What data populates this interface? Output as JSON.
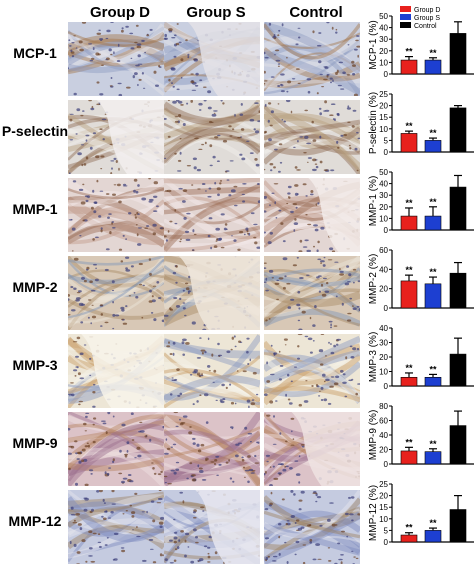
{
  "columns": [
    "Group D",
    "Group S",
    "Control"
  ],
  "rows": [
    "MCP-1",
    "P-selectin",
    "MMP-1",
    "MMP-2",
    "MMP-3",
    "MMP-9",
    "MMP-12"
  ],
  "legend": [
    "Group D",
    "Group S",
    "Control"
  ],
  "significance_marker": "**",
  "colors": {
    "group_d": "#e8211d",
    "group_s": "#1d3fd1",
    "control": "#000000"
  },
  "chart_data": [
    {
      "type": "bar",
      "title": "",
      "ylabel": "MCP-1 (%)",
      "categories": [
        "Group D",
        "Group S",
        "Control"
      ],
      "values": [
        12,
        12,
        35
      ],
      "errors": [
        3,
        2,
        10
      ],
      "ylim": [
        0,
        50
      ],
      "yticks": [
        0,
        10,
        20,
        30,
        40,
        50
      ],
      "significance": [
        "**",
        "**",
        ""
      ]
    },
    {
      "type": "bar",
      "title": "",
      "ylabel": "P-selectin (%)",
      "categories": [
        "Group D",
        "Group S",
        "Control"
      ],
      "values": [
        8,
        5,
        19
      ],
      "errors": [
        1,
        1,
        1
      ],
      "ylim": [
        0,
        25
      ],
      "yticks": [
        0,
        5,
        10,
        15,
        20,
        25
      ],
      "significance": [
        "**",
        "**",
        ""
      ]
    },
    {
      "type": "bar",
      "title": "",
      "ylabel": "MMP-1 (%)",
      "categories": [
        "Group D",
        "Group S",
        "Control"
      ],
      "values": [
        12,
        12,
        37
      ],
      "errors": [
        7,
        8,
        10
      ],
      "ylim": [
        0,
        50
      ],
      "yticks": [
        0,
        10,
        20,
        30,
        40,
        50
      ],
      "significance": [
        "**",
        "**",
        ""
      ]
    },
    {
      "type": "bar",
      "title": "",
      "ylabel": "MMP-2 (%)",
      "categories": [
        "Group D",
        "Group S",
        "Control"
      ],
      "values": [
        28,
        25,
        36
      ],
      "errors": [
        6,
        7,
        11
      ],
      "ylim": [
        0,
        60
      ],
      "yticks": [
        0,
        20,
        40,
        60
      ],
      "significance": [
        "**",
        "**",
        ""
      ]
    },
    {
      "type": "bar",
      "title": "",
      "ylabel": "MMP-3 (%)",
      "categories": [
        "Group D",
        "Group S",
        "Control"
      ],
      "values": [
        6,
        6,
        22
      ],
      "errors": [
        3,
        2,
        11
      ],
      "ylim": [
        0,
        40
      ],
      "yticks": [
        0,
        10,
        20,
        30,
        40
      ],
      "significance": [
        "**",
        "**",
        ""
      ]
    },
    {
      "type": "bar",
      "title": "",
      "ylabel": "MMP-9 (%)",
      "categories": [
        "Group D",
        "Group S",
        "Control"
      ],
      "values": [
        18,
        17,
        53
      ],
      "errors": [
        5,
        4,
        20
      ],
      "ylim": [
        0,
        80
      ],
      "yticks": [
        0,
        20,
        40,
        60,
        80
      ],
      "significance": [
        "**",
        "**",
        ""
      ]
    },
    {
      "type": "bar",
      "title": "",
      "ylabel": "MMP-12 (%)",
      "categories": [
        "Group D",
        "Group S",
        "Control"
      ],
      "values": [
        3,
        5,
        14
      ],
      "errors": [
        1,
        1,
        6
      ],
      "ylim": [
        0,
        25
      ],
      "yticks": [
        0,
        5,
        10,
        15,
        20,
        25
      ],
      "significance": [
        "**",
        "**",
        ""
      ]
    }
  ]
}
